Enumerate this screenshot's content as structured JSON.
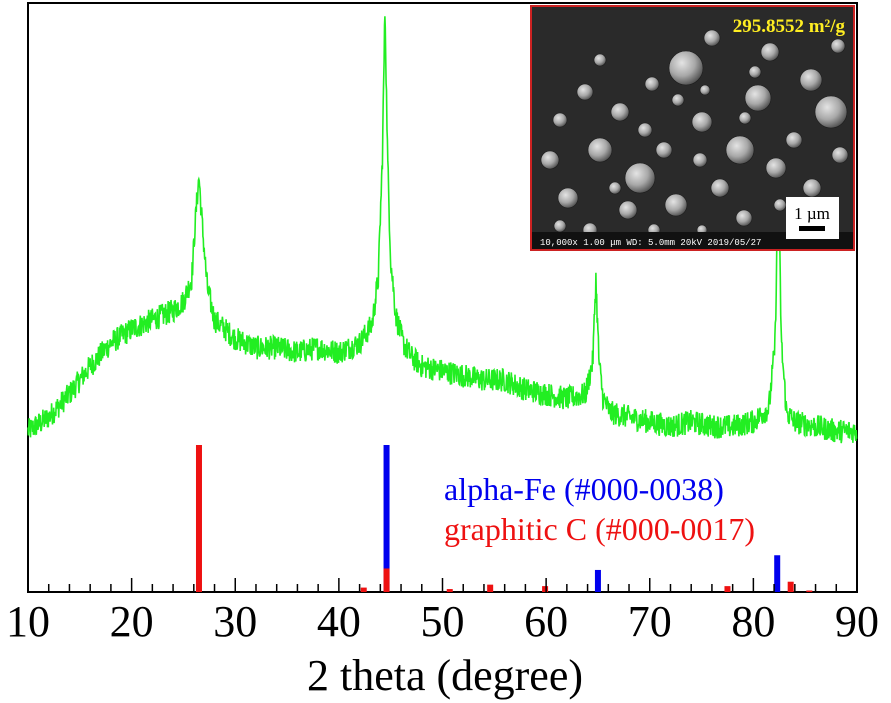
{
  "chart_data": {
    "type": "line",
    "xlabel": "2 theta (degree)",
    "ylabel": "",
    "xlim": [
      10,
      90
    ],
    "xticks": [
      10,
      20,
      30,
      40,
      50,
      60,
      70,
      80,
      90
    ],
    "grid": false,
    "series": [
      {
        "name": "",
        "color": "#22ee22",
        "x": [
          10,
          12,
          14,
          16,
          18,
          20,
          22,
          24,
          25,
          25.8,
          26.2,
          26.5,
          26.8,
          27.3,
          28,
          30,
          32,
          34,
          36,
          38,
          40,
          42,
          43.2,
          43.8,
          44.2,
          44.45,
          44.7,
          45,
          45.5,
          46.2,
          47,
          48,
          50,
          52,
          54,
          56,
          58,
          60,
          62,
          63.8,
          64.5,
          64.8,
          65.1,
          65.5,
          66.2,
          68,
          70,
          72,
          74,
          76,
          78,
          80,
          81.5,
          82.1,
          82.4,
          82.7,
          83.2,
          84,
          86,
          88,
          90
        ],
        "y": [
          3,
          6,
          11,
          17,
          22,
          25,
          27,
          29,
          31,
          36,
          50,
          58,
          48,
          34,
          27,
          23,
          21,
          21,
          20,
          21,
          20,
          22,
          26,
          36,
          62,
          95,
          62,
          40,
          28,
          22,
          19,
          17,
          16,
          15,
          14,
          14,
          12,
          11,
          10,
          11,
          18,
          36,
          18,
          10,
          7,
          6,
          5,
          4,
          5,
          4,
          4,
          5,
          8,
          22,
          60,
          22,
          7,
          5,
          4,
          3,
          3
        ]
      }
    ],
    "reference_patterns": [
      {
        "name": "alpha-Fe (#000-0038)",
        "color": "#0000ee",
        "peaks": [
          {
            "x": 44.6,
            "intensity": 100
          },
          {
            "x": 65.0,
            "intensity": 15
          },
          {
            "x": 82.3,
            "intensity": 25
          }
        ]
      },
      {
        "name": "graphitic C (#000-0017)",
        "color": "#ee1111",
        "peaks": [
          {
            "x": 26.5,
            "intensity": 100
          },
          {
            "x": 42.4,
            "intensity": 3
          },
          {
            "x": 44.6,
            "intensity": 16
          },
          {
            "x": 50.7,
            "intensity": 2
          },
          {
            "x": 54.6,
            "intensity": 5
          },
          {
            "x": 59.9,
            "intensity": 4
          },
          {
            "x": 77.5,
            "intensity": 4
          },
          {
            "x": 83.6,
            "intensity": 7
          },
          {
            "x": 85.4,
            "intensity": 1
          }
        ]
      }
    ],
    "inset": {
      "surface_area": "295.8552 m²/g",
      "scale_bar": "1 µm",
      "footer": "10,000x  1.00 μm  WD: 5.0mm  20kV  2019/05/27"
    }
  },
  "colors": {
    "pattern_line": "#22ee22",
    "alpha_fe": "#0000ee",
    "graphitic_c": "#ee1111",
    "inset_border": "#cc2222",
    "surface_area_text": "#ffee22"
  }
}
